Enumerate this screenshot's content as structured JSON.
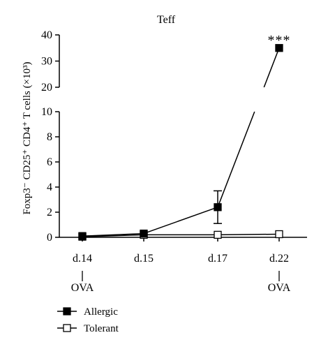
{
  "chart_data": {
    "type": "line",
    "title": "Teff",
    "xlabel": "",
    "ylabel": "Foxp3⁻ CD25⁺ CD4⁺ T cells (×10³)",
    "categories": [
      "d.14",
      "d.15",
      "d.17",
      "d.22"
    ],
    "yaxis": {
      "broken": true,
      "lower_range": [
        0,
        10
      ],
      "lower_ticks": [
        0,
        2,
        4,
        6,
        8,
        10
      ],
      "upper_range": [
        20,
        40
      ],
      "upper_ticks": [
        20,
        30,
        40
      ]
    },
    "series": [
      {
        "name": "Allergic",
        "marker": "filled-square",
        "values": [
          0.1,
          0.3,
          2.4,
          35
        ],
        "error": [
          0,
          0,
          1.3,
          0
        ]
      },
      {
        "name": "Tolerant",
        "marker": "open-square",
        "values": [
          0.05,
          0.2,
          0.2,
          0.25
        ],
        "error": [
          0,
          0,
          0,
          0
        ]
      }
    ],
    "annotations": [
      {
        "category": "d.22",
        "text": "***"
      },
      {
        "category": "d.14",
        "text": "OVA"
      },
      {
        "category": "d.22",
        "text": "OVA"
      }
    ],
    "grid": false,
    "legend_position": "bottom-left"
  }
}
